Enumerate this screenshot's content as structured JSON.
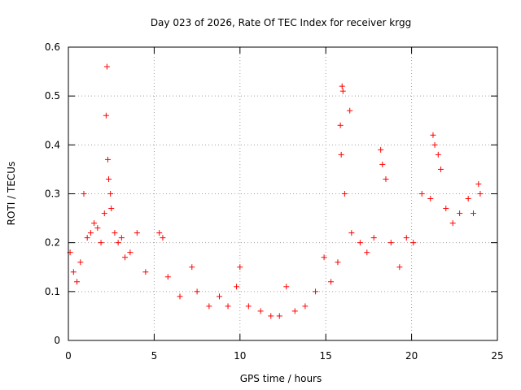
{
  "chart_data": {
    "type": "scatter",
    "title": "Day 023 of 2026, Rate Of TEC Index for receiver krgg",
    "xlabel": "GPS time / hours",
    "ylabel": "ROTI / TECUs",
    "xlim": [
      0,
      25
    ],
    "ylim": [
      0,
      0.6
    ],
    "xticks": [
      0,
      5,
      10,
      15,
      20,
      25
    ],
    "yticks": [
      0,
      0.1,
      0.2,
      0.3,
      0.4,
      0.5,
      0.6
    ],
    "xtick_labels": [
      "0",
      "5",
      "10",
      "15",
      "20",
      "25"
    ],
    "ytick_labels": [
      "0",
      "0.1",
      "0.2",
      "0.3",
      "0.4",
      "0.5",
      "0.6"
    ],
    "grid": true,
    "marker": "+",
    "color": "#ff0000",
    "series": [
      {
        "points": [
          [
            0.1,
            0.18
          ],
          [
            0.3,
            0.14
          ],
          [
            0.5,
            0.12
          ],
          [
            0.7,
            0.16
          ],
          [
            0.9,
            0.3
          ],
          [
            1.1,
            0.21
          ],
          [
            1.3,
            0.22
          ],
          [
            1.5,
            0.24
          ],
          [
            1.7,
            0.23
          ],
          [
            1.9,
            0.2
          ],
          [
            2.1,
            0.26
          ],
          [
            2.2,
            0.46
          ],
          [
            2.25,
            0.56
          ],
          [
            2.3,
            0.37
          ],
          [
            2.35,
            0.33
          ],
          [
            2.45,
            0.3
          ],
          [
            2.5,
            0.27
          ],
          [
            2.7,
            0.22
          ],
          [
            2.9,
            0.2
          ],
          [
            3.1,
            0.21
          ],
          [
            3.3,
            0.17
          ],
          [
            3.6,
            0.18
          ],
          [
            4.0,
            0.22
          ],
          [
            4.5,
            0.14
          ],
          [
            5.3,
            0.22
          ],
          [
            5.5,
            0.21
          ],
          [
            5.8,
            0.13
          ],
          [
            6.5,
            0.09
          ],
          [
            7.2,
            0.15
          ],
          [
            7.5,
            0.1
          ],
          [
            8.2,
            0.07
          ],
          [
            8.8,
            0.09
          ],
          [
            9.3,
            0.07
          ],
          [
            9.8,
            0.11
          ],
          [
            10.0,
            0.15
          ],
          [
            10.5,
            0.07
          ],
          [
            11.2,
            0.06
          ],
          [
            11.8,
            0.05
          ],
          [
            12.3,
            0.05
          ],
          [
            12.7,
            0.11
          ],
          [
            13.2,
            0.06
          ],
          [
            13.8,
            0.07
          ],
          [
            14.4,
            0.1
          ],
          [
            14.9,
            0.17
          ],
          [
            15.3,
            0.12
          ],
          [
            15.7,
            0.16
          ],
          [
            15.85,
            0.44
          ],
          [
            15.9,
            0.38
          ],
          [
            15.95,
            0.52
          ],
          [
            16.0,
            0.51
          ],
          [
            16.1,
            0.3
          ],
          [
            16.4,
            0.47
          ],
          [
            16.5,
            0.22
          ],
          [
            17.0,
            0.2
          ],
          [
            17.4,
            0.18
          ],
          [
            17.8,
            0.21
          ],
          [
            18.2,
            0.39
          ],
          [
            18.3,
            0.36
          ],
          [
            18.5,
            0.33
          ],
          [
            18.8,
            0.2
          ],
          [
            19.3,
            0.15
          ],
          [
            19.7,
            0.21
          ],
          [
            20.1,
            0.2
          ],
          [
            20.6,
            0.3
          ],
          [
            21.1,
            0.29
          ],
          [
            21.25,
            0.42
          ],
          [
            21.35,
            0.4
          ],
          [
            21.55,
            0.38
          ],
          [
            21.7,
            0.35
          ],
          [
            22.0,
            0.27
          ],
          [
            22.4,
            0.24
          ],
          [
            22.8,
            0.26
          ],
          [
            23.3,
            0.29
          ],
          [
            23.6,
            0.26
          ],
          [
            23.9,
            0.32
          ],
          [
            24.0,
            0.3
          ]
        ]
      }
    ]
  }
}
